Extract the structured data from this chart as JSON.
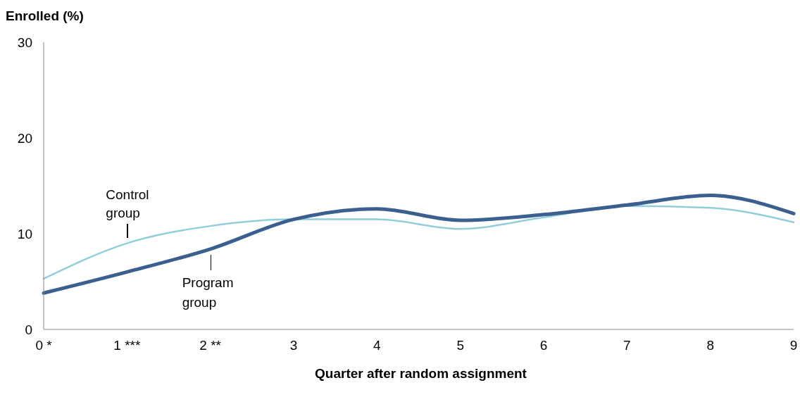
{
  "chart_data": {
    "type": "line",
    "ylabel": "Enrolled (%)",
    "xlabel": "Quarter after random assignment",
    "categories": [
      "0 *",
      "1 ***",
      "2 **",
      "3",
      "4",
      "5",
      "6",
      "7",
      "8",
      "9"
    ],
    "ylim": [
      0,
      30
    ],
    "yticks": [
      0,
      10,
      20,
      30
    ],
    "grid": false,
    "legend": false,
    "marker": "none",
    "series": [
      {
        "name": "Control group",
        "color": "#92cddc",
        "values": [
          5.3,
          9.0,
          10.8,
          11.5,
          11.5,
          10.5,
          11.7,
          12.9,
          12.7,
          11.2
        ]
      },
      {
        "name": "Program group",
        "color": "#3b5f8f",
        "values": [
          3.8,
          6.0,
          8.4,
          11.5,
          12.6,
          11.4,
          12.0,
          13.0,
          14.0,
          12.1
        ]
      }
    ]
  }
}
